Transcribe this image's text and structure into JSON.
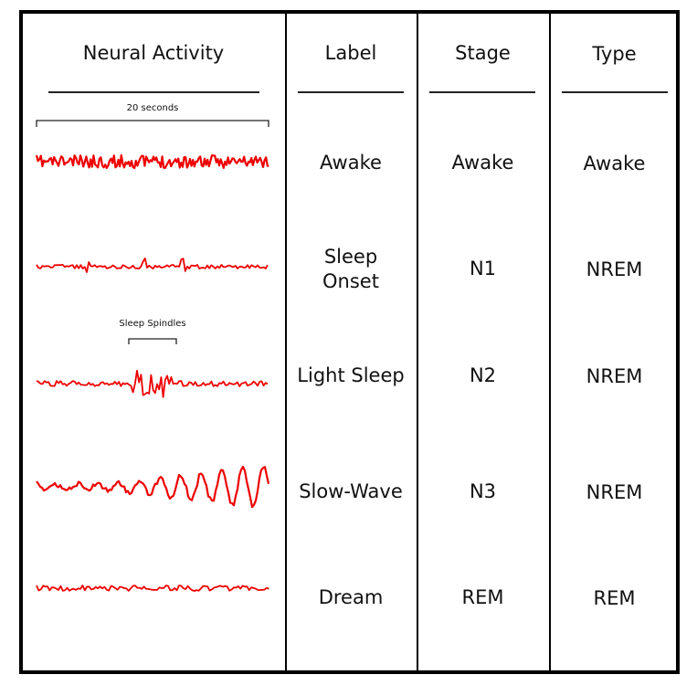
{
  "headers": {
    "neural_activity": "Neural Activity",
    "label": "Label",
    "stage": "Stage",
    "type": "Type"
  },
  "annotations": {
    "time_scale": "20 seconds",
    "sleep_spindles": "Sleep Spindles"
  },
  "rows": [
    {
      "label": "Awake",
      "stage": "Awake",
      "type": "Awake"
    },
    {
      "label": "Sleep Onset",
      "stage": "N1",
      "type": "NREM"
    },
    {
      "label": "Light Sleep",
      "stage": "N2",
      "type": "NREM"
    },
    {
      "label": "Slow-Wave",
      "stage": "N3",
      "type": "NREM"
    },
    {
      "label": "Dream",
      "stage": "REM",
      "type": "REM"
    }
  ],
  "colors": {
    "wave": "#ee0000",
    "border": "#000000"
  }
}
